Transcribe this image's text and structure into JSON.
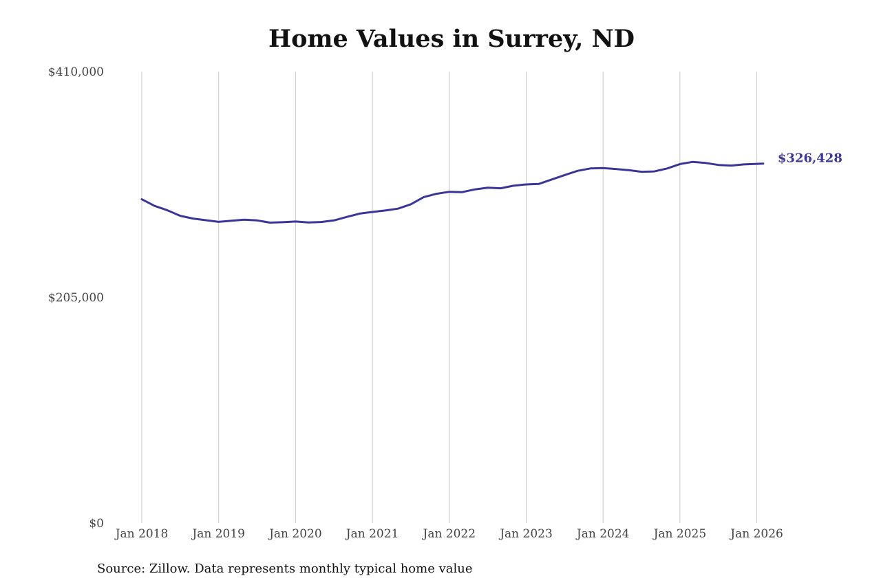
{
  "chart_data": {
    "type": "line",
    "title": "Home Values in Surrey, ND",
    "xlabel": "",
    "ylabel": "",
    "ylim": [
      0,
      410000
    ],
    "y_ticks": [
      "$410,000",
      "$205,000",
      "$0"
    ],
    "y_tick_values": [
      410000,
      205000,
      0
    ],
    "x_ticks": [
      "Jan 2018",
      "Jan 2019",
      "Jan 2020",
      "Jan 2021",
      "Jan 2022",
      "Jan 2023",
      "Jan 2024",
      "Jan 2025",
      "Jan 2026"
    ],
    "grid": "vertical",
    "series": [
      {
        "color": "#3a3599",
        "end_label": "$326,428",
        "points": [
          [
            "2018-01",
            294000
          ],
          [
            "2018-03",
            288000
          ],
          [
            "2018-05",
            284000
          ],
          [
            "2018-07",
            279000
          ],
          [
            "2018-09",
            276500
          ],
          [
            "2018-11",
            275000
          ],
          [
            "2019-01",
            273500
          ],
          [
            "2019-03",
            274500
          ],
          [
            "2019-05",
            275500
          ],
          [
            "2019-07",
            274800
          ],
          [
            "2019-09",
            272800
          ],
          [
            "2019-11",
            273200
          ],
          [
            "2020-01",
            273800
          ],
          [
            "2020-03",
            273000
          ],
          [
            "2020-05",
            273400
          ],
          [
            "2020-07",
            274800
          ],
          [
            "2020-09",
            278000
          ],
          [
            "2020-11",
            281000
          ],
          [
            "2021-01",
            282500
          ],
          [
            "2021-03",
            283800
          ],
          [
            "2021-05",
            285500
          ],
          [
            "2021-07",
            289500
          ],
          [
            "2021-09",
            296000
          ],
          [
            "2021-11",
            299000
          ],
          [
            "2022-01",
            300800
          ],
          [
            "2022-03",
            300500
          ],
          [
            "2022-05",
            303000
          ],
          [
            "2022-07",
            304500
          ],
          [
            "2022-09",
            304000
          ],
          [
            "2022-11",
            306300
          ],
          [
            "2023-01",
            307500
          ],
          [
            "2023-03",
            308000
          ],
          [
            "2023-05",
            312000
          ],
          [
            "2023-07",
            316000
          ],
          [
            "2023-09",
            319800
          ],
          [
            "2023-11",
            322000
          ],
          [
            "2024-01",
            322300
          ],
          [
            "2024-03",
            321500
          ],
          [
            "2024-05",
            320500
          ],
          [
            "2024-07",
            319000
          ],
          [
            "2024-09",
            319300
          ],
          [
            "2024-11",
            322000
          ],
          [
            "2025-01",
            326000
          ],
          [
            "2025-03",
            328000
          ],
          [
            "2025-05",
            327000
          ],
          [
            "2025-07",
            325200
          ],
          [
            "2025-09",
            324600
          ],
          [
            "2025-11",
            325700
          ],
          [
            "2026-01",
            326200
          ],
          [
            "2026-02",
            326428
          ]
        ]
      }
    ]
  },
  "source_note": "Source: Zillow. Data represents monthly typical home value"
}
